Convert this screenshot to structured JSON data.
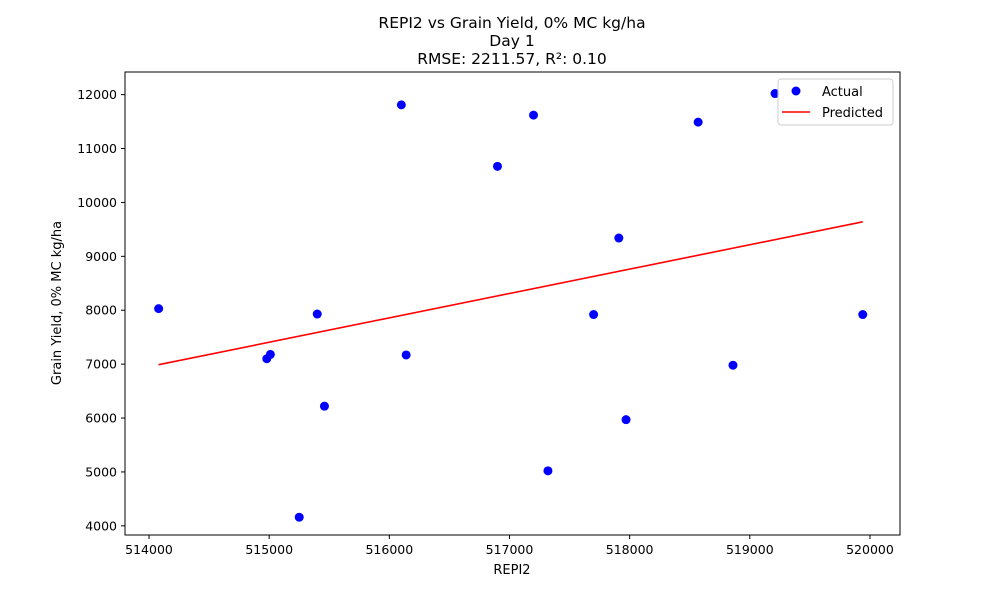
{
  "chart_data": {
    "type": "scatter",
    "title_lines": [
      "REPI2 vs Grain Yield, 0% MC kg/ha",
      "Day 1",
      "RMSE: 2211.57, R²: 0.10"
    ],
    "xlabel": "REPI2",
    "ylabel": "Grain Yield, 0% MC kg/ha",
    "xlim": [
      513800,
      520250
    ],
    "ylim": [
      3830,
      12420
    ],
    "x_ticks": [
      514000,
      515000,
      516000,
      517000,
      518000,
      519000,
      520000
    ],
    "y_ticks": [
      4000,
      5000,
      6000,
      7000,
      8000,
      9000,
      10000,
      11000,
      12000
    ],
    "legend": {
      "position": "top-right",
      "entries": [
        "Actual",
        "Predicted"
      ]
    },
    "series": [
      {
        "name": "Actual",
        "kind": "scatter",
        "color": "#0000ff",
        "points": [
          [
            514080,
            8030
          ],
          [
            514980,
            7100
          ],
          [
            515010,
            7180
          ],
          [
            515250,
            4160
          ],
          [
            515400,
            7930
          ],
          [
            515460,
            6220
          ],
          [
            516100,
            11810
          ],
          [
            516140,
            7170
          ],
          [
            516900,
            10670
          ],
          [
            517200,
            11620
          ],
          [
            517320,
            5020
          ],
          [
            517700,
            7920
          ],
          [
            517910,
            9340
          ],
          [
            517970,
            5970
          ],
          [
            518570,
            11490
          ],
          [
            518860,
            6980
          ],
          [
            519210,
            12020
          ],
          [
            519940,
            7920
          ]
        ]
      },
      {
        "name": "Predicted",
        "kind": "line",
        "color": "#ff0000",
        "points": [
          [
            514080,
            6990
          ],
          [
            519940,
            9640
          ]
        ]
      }
    ]
  }
}
